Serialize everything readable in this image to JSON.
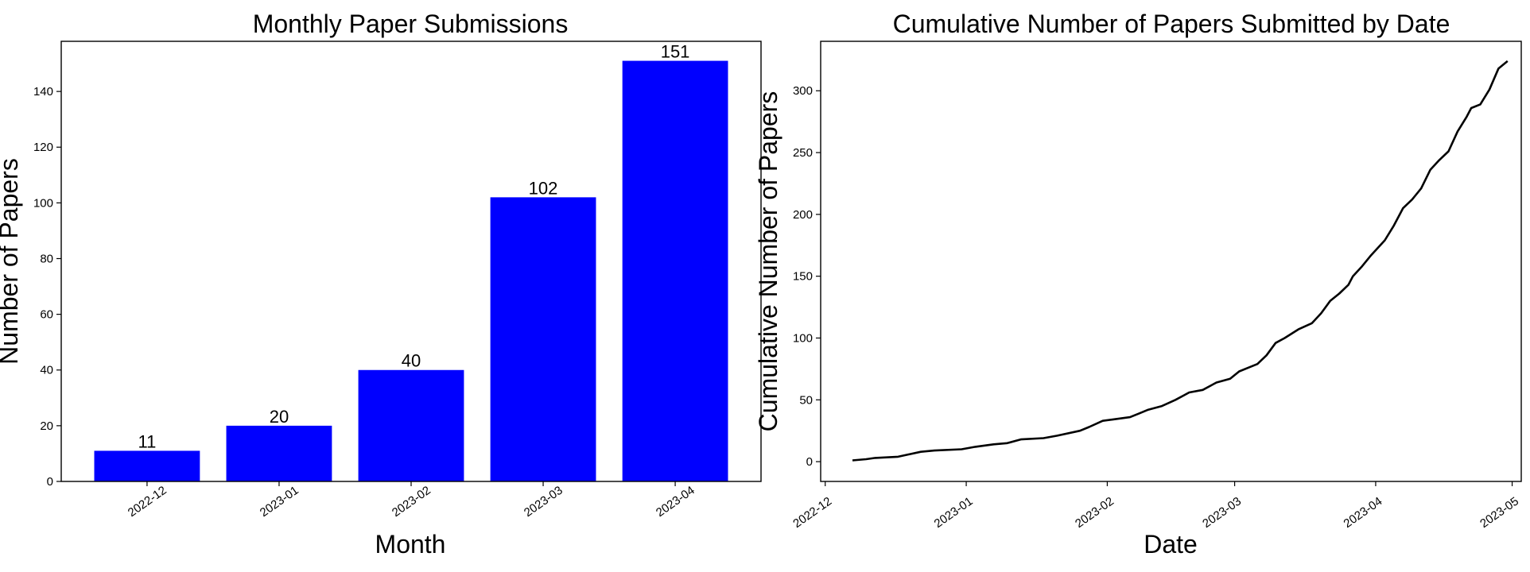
{
  "chart_data": [
    {
      "type": "bar",
      "title": "Monthly Paper Submissions",
      "xlabel": "Month",
      "ylabel": "Number of Papers",
      "categories": [
        "2022-12",
        "2023-01",
        "2023-02",
        "2023-03",
        "2023-04"
      ],
      "values": [
        11,
        20,
        40,
        102,
        151
      ],
      "data_labels": [
        "11",
        "20",
        "40",
        "102",
        "151"
      ],
      "ylim": [
        0,
        158
      ],
      "yticks": [
        0,
        20,
        40,
        60,
        80,
        100,
        120,
        140
      ],
      "bar_color": "#0000ff",
      "grid": false
    },
    {
      "type": "line",
      "title": "Cumulative Number of Papers Submitted by Date",
      "xlabel": "Date",
      "ylabel": "Cumulative Number of Papers",
      "xlim": [
        "2022-11-30",
        "2023-05-03"
      ],
      "ylim": [
        -16,
        340
      ],
      "xticks": [
        "2022-12",
        "2023-01",
        "2023-02",
        "2023-03",
        "2023-04",
        "2023-05"
      ],
      "yticks": [
        0,
        50,
        100,
        150,
        200,
        250,
        300
      ],
      "line_color": "#000000",
      "grid": false,
      "x": [
        "2022-12-07",
        "2022-12-10",
        "2022-12-12",
        "2022-12-17",
        "2022-12-22",
        "2022-12-25",
        "2022-12-31",
        "2023-01-03",
        "2023-01-07",
        "2023-01-10",
        "2023-01-13",
        "2023-01-18",
        "2023-01-21",
        "2023-01-26",
        "2023-01-28",
        "2023-01-31",
        "2023-02-02",
        "2023-02-06",
        "2023-02-08",
        "2023-02-10",
        "2023-02-13",
        "2023-02-16",
        "2023-02-18",
        "2023-02-19",
        "2023-02-22",
        "2023-02-25",
        "2023-02-28",
        "2023-03-02",
        "2023-03-04",
        "2023-03-06",
        "2023-03-08",
        "2023-03-10",
        "2023-03-12",
        "2023-03-15",
        "2023-03-18",
        "2023-03-20",
        "2023-03-22",
        "2023-03-24",
        "2023-03-26",
        "2023-03-27",
        "2023-03-29",
        "2023-03-31",
        "2023-04-03",
        "2023-04-05",
        "2023-04-07",
        "2023-04-09",
        "2023-04-11",
        "2023-04-13",
        "2023-04-15",
        "2023-04-17",
        "2023-04-19",
        "2023-04-21",
        "2023-04-22",
        "2023-04-24",
        "2023-04-26",
        "2023-04-28",
        "2023-04-30"
      ],
      "y": [
        1,
        2,
        3,
        4,
        8,
        9,
        10,
        12,
        14,
        15,
        18,
        19,
        21,
        25,
        28,
        33,
        34,
        36,
        39,
        42,
        45,
        50,
        54,
        56,
        58,
        64,
        67,
        73,
        76,
        79,
        86,
        96,
        100,
        107,
        112,
        120,
        130,
        136,
        143,
        150,
        158,
        167,
        179,
        191,
        205,
        212,
        221,
        236,
        244,
        251,
        267,
        279,
        286,
        289,
        301,
        318,
        324
      ]
    }
  ]
}
